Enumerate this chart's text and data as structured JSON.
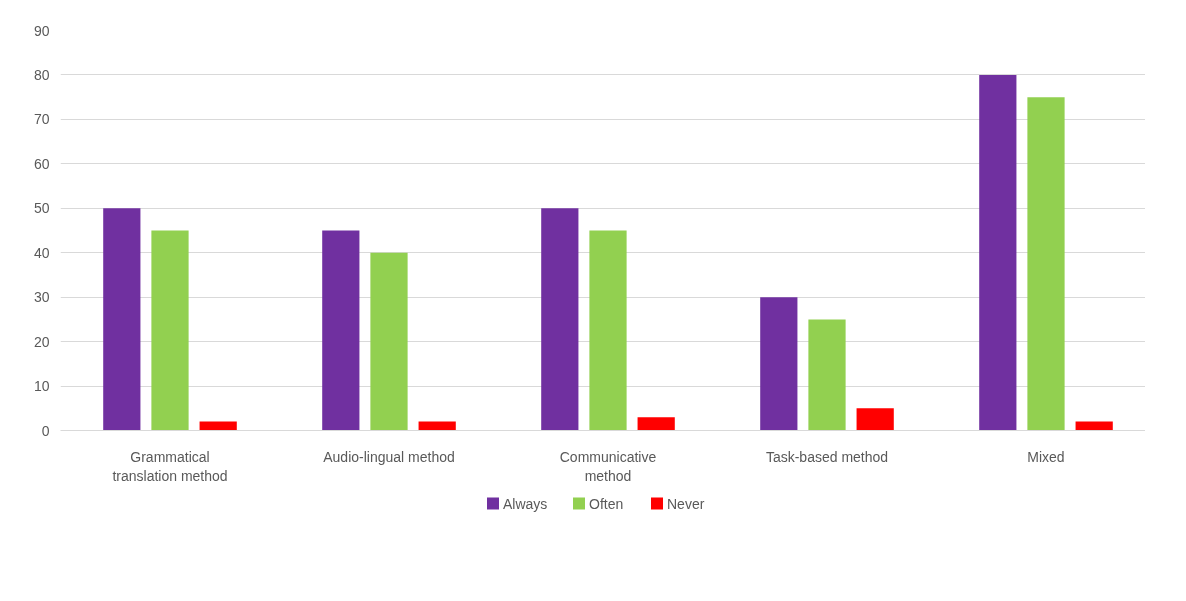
{
  "chart_data": {
    "type": "bar",
    "categories": [
      "Grammatical\ntranslation method",
      "Audio-lingual method",
      "Communicative\nmethod",
      "Task-based method",
      "Mixed"
    ],
    "series": [
      {
        "name": "Always",
        "color": "#7030a0",
        "values": [
          50,
          45,
          50,
          30,
          80
        ]
      },
      {
        "name": "Often",
        "color": "#92d050",
        "values": [
          45,
          40,
          45,
          25,
          75
        ]
      },
      {
        "name": "Never",
        "color": "#ff0000",
        "values": [
          2,
          2,
          3,
          5,
          2
        ]
      }
    ],
    "ylim": [
      0,
      90
    ],
    "yticks": [
      0,
      10,
      20,
      30,
      40,
      50,
      60,
      70,
      80,
      90
    ],
    "grid": "y",
    "legend": "bottom"
  }
}
